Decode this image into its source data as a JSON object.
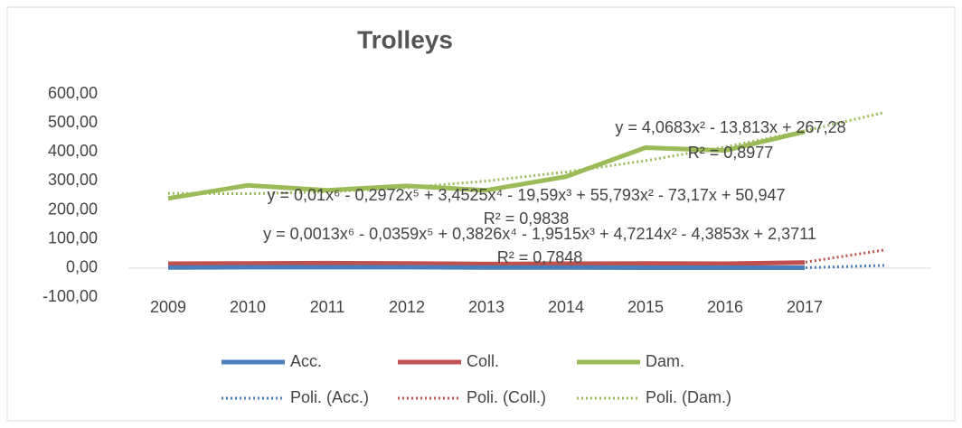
{
  "chart_data": {
    "type": "line",
    "title": "Trolleys",
    "categories": [
      "2009",
      "2010",
      "2011",
      "2012",
      "2013",
      "2014",
      "2015",
      "2016",
      "2017"
    ],
    "ylim": [
      -100,
      600
    ],
    "yticks": [
      {
        "value": -100,
        "label": "-100,00"
      },
      {
        "value": 0,
        "label": "0,00"
      },
      {
        "value": 100,
        "label": "100,00"
      },
      {
        "value": 200,
        "label": "200,00"
      },
      {
        "value": 300,
        "label": "300,00"
      },
      {
        "value": 400,
        "label": "400,00"
      },
      {
        "value": 500,
        "label": "500,00"
      },
      {
        "value": 600,
        "label": "600,00"
      }
    ],
    "grid": false,
    "legend": "bottom",
    "series": [
      {
        "name": "Acc.",
        "color": "#4a7ebb",
        "style": "solid",
        "values": [
          2,
          3,
          3,
          3,
          2,
          2,
          1,
          1,
          1
        ]
      },
      {
        "name": "Coll.",
        "color": "#c0504d",
        "style": "solid",
        "values": [
          15,
          16,
          17,
          16,
          14,
          15,
          16,
          15,
          19
        ]
      },
      {
        "name": "Dam.",
        "color": "#9bbb59",
        "style": "solid",
        "values": [
          240,
          285,
          268,
          283,
          268,
          315,
          415,
          405,
          470
        ]
      },
      {
        "name": "Poli. (Acc.)",
        "color": "#4a7ebb",
        "style": "dotted",
        "values": [
          2,
          3,
          3,
          2,
          2,
          2,
          1,
          1,
          1
        ],
        "forecast": 9
      },
      {
        "name": "Poli. (Coll.)",
        "color": "#c0504d",
        "style": "dotted",
        "values": [
          14,
          15,
          16,
          15,
          14,
          14,
          15,
          16,
          20
        ],
        "forecast": 62
      },
      {
        "name": "Poli. (Dam.)",
        "color": "#9bbb59",
        "style": "dotted",
        "values": [
          257.5,
          255.9,
          262.5,
          277.1,
          299.9,
          330.9,
          369.9,
          417.2,
          472.5
        ],
        "forecast": 536
      }
    ],
    "annotations": [
      "y = 4,0683x² - 13,813x + 267,28",
      "R² = 0,8977",
      "y = 0,01x⁶ - 0,2972x⁵ + 3,4525x⁴ - 19,59x³ + 55,793x² - 73,17x + 50,947",
      "R² = 0,9838",
      "y = 0,0013x⁶ - 0,0359x⁵ + 0,3826x⁴ - 1,9515x³ + 4,7214x² - 4,3853x + 2,3711",
      "R² = 0,7848"
    ]
  }
}
